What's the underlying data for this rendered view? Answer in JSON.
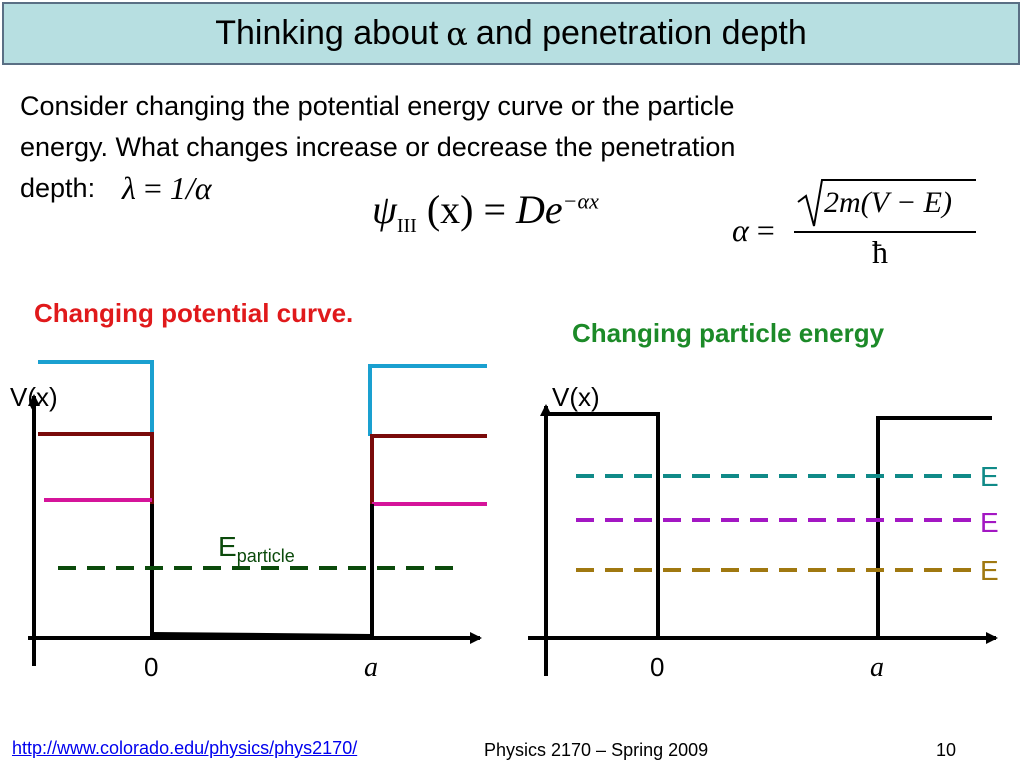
{
  "title": {
    "prefix": "Thinking about",
    "symbol": "α",
    "suffix": "and penetration depth"
  },
  "body": {
    "line1": "Consider changing the potential energy curve or the particle",
    "line2": "energy.  What changes increase or decrease the penetration",
    "line3": "depth:"
  },
  "equations": {
    "lambda_lhs": "λ",
    "lambda_eq": "=",
    "lambda_rhs": "1/α",
    "psi": "ψ",
    "psi_sub": "III",
    "psi_arg": "(x)",
    "psi_eq": "=",
    "psi_rhs": "De",
    "psi_exp": "−αx",
    "alpha_lhs": "α",
    "alpha_eq": "=",
    "alpha_num": "2m(V − E)",
    "alpha_den": "ħ"
  },
  "left_diagram": {
    "heading": "Changing potential curve.",
    "ylabel": "V(x)",
    "origin_label": "0",
    "width_label": "a",
    "energy_label": "E",
    "energy_sub": "particle",
    "colors": {
      "blue": "#1aa0d0",
      "darkred": "#7a0a0a",
      "magenta": "#d5149a",
      "darkgreen": "#0b4a0b"
    }
  },
  "right_diagram": {
    "heading": "Changing particle energy",
    "ylabel": "V(x)",
    "origin_label": "0",
    "width_label": "a",
    "energy_labels": [
      "E",
      "E",
      "E"
    ],
    "colors": {
      "teal": "#108a88",
      "purple": "#a317c3",
      "gold": "#a07810"
    }
  },
  "footer": {
    "link": "http://www.colorado.edu/physics/phys2170/",
    "course": "Physics 2170 – Spring 2009",
    "page": "10"
  }
}
